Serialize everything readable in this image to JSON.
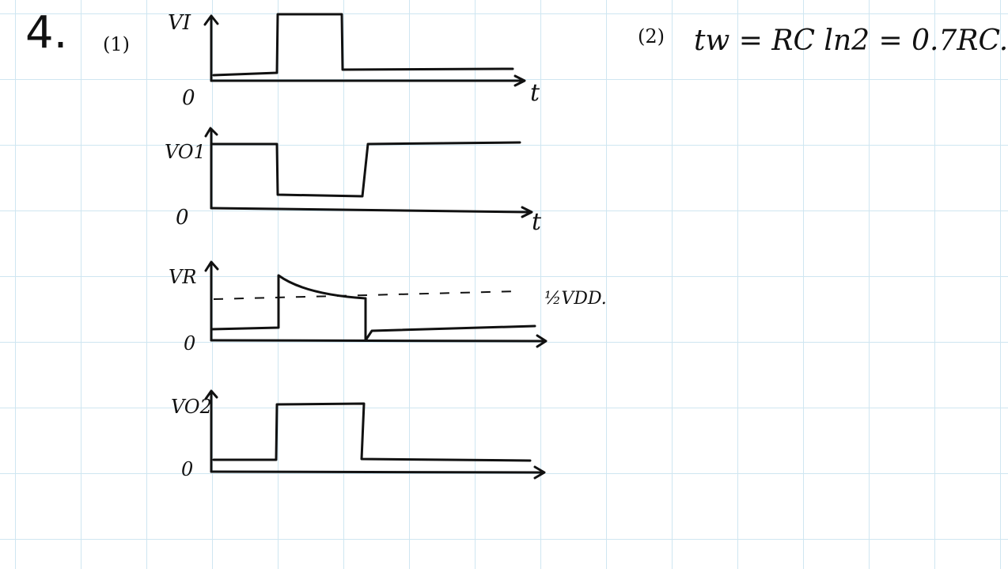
{
  "problem": {
    "number": "4.",
    "part1_label": "(1)",
    "part2_label": "(2)",
    "formula": "tw = RC ln2 = 0.7RC."
  },
  "waveforms": [
    {
      "label": "VI",
      "origin": "0",
      "time_label": "t"
    },
    {
      "label": "VO1",
      "origin": "0",
      "time_label": "t"
    },
    {
      "label": "VR",
      "origin": "0",
      "time_label": "",
      "threshold_label": "½VDD."
    },
    {
      "label": "VO2",
      "origin": "0",
      "time_label": ""
    }
  ]
}
